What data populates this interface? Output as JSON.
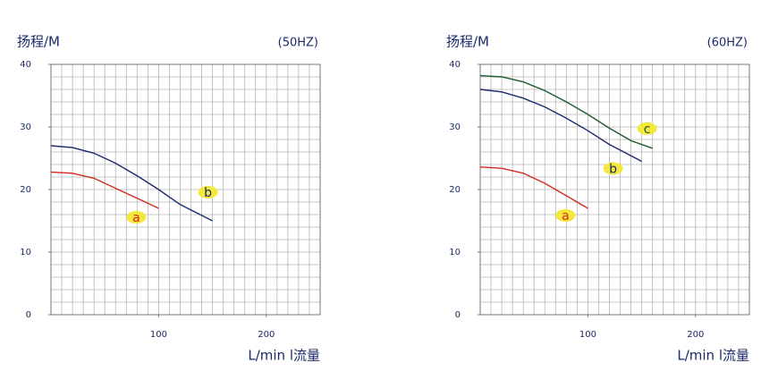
{
  "chart_data": [
    {
      "type": "line",
      "title": "(50HZ)",
      "y_label": "扬程/M",
      "x_label": "L/min l流量",
      "xlim": [
        0,
        250
      ],
      "ylim": [
        0,
        40
      ],
      "xticks": [
        100,
        200
      ],
      "yticks": [
        0,
        10,
        20,
        30,
        40
      ],
      "grid": true,
      "series": [
        {
          "name": "a",
          "color": "#d42a1e",
          "x": [
            0,
            20,
            40,
            60,
            80,
            100
          ],
          "values": [
            22.8,
            22.6,
            21.8,
            20.2,
            18.6,
            17
          ]
        },
        {
          "name": "b",
          "color": "#1a2a6c",
          "x": [
            0,
            20,
            40,
            60,
            80,
            100,
            120,
            150
          ],
          "values": [
            27,
            26.7,
            25.8,
            24.2,
            22.2,
            20,
            17.6,
            15
          ]
        }
      ]
    },
    {
      "type": "line",
      "title": "(60HZ)",
      "y_label": "扬程/M",
      "x_label": "L/min l流量",
      "xlim": [
        0,
        250
      ],
      "ylim": [
        0,
        40
      ],
      "xticks": [
        100,
        200
      ],
      "yticks": [
        0,
        10,
        20,
        30,
        40
      ],
      "grid": true,
      "series": [
        {
          "name": "a",
          "color": "#d42a1e",
          "x": [
            0,
            20,
            40,
            60,
            80,
            100
          ],
          "values": [
            23.6,
            23.4,
            22.6,
            21,
            19,
            17
          ]
        },
        {
          "name": "b",
          "color": "#1a2a6c",
          "x": [
            0,
            20,
            40,
            60,
            80,
            100,
            120,
            150
          ],
          "values": [
            36,
            35.6,
            34.6,
            33.2,
            31.4,
            29.4,
            27.2,
            24.5
          ]
        },
        {
          "name": "c",
          "color": "#1e5a2a",
          "x": [
            0,
            20,
            40,
            60,
            80,
            100,
            120,
            140,
            160
          ],
          "values": [
            38.2,
            38,
            37.2,
            35.8,
            34,
            32,
            29.8,
            27.8,
            26.6
          ]
        }
      ]
    }
  ]
}
